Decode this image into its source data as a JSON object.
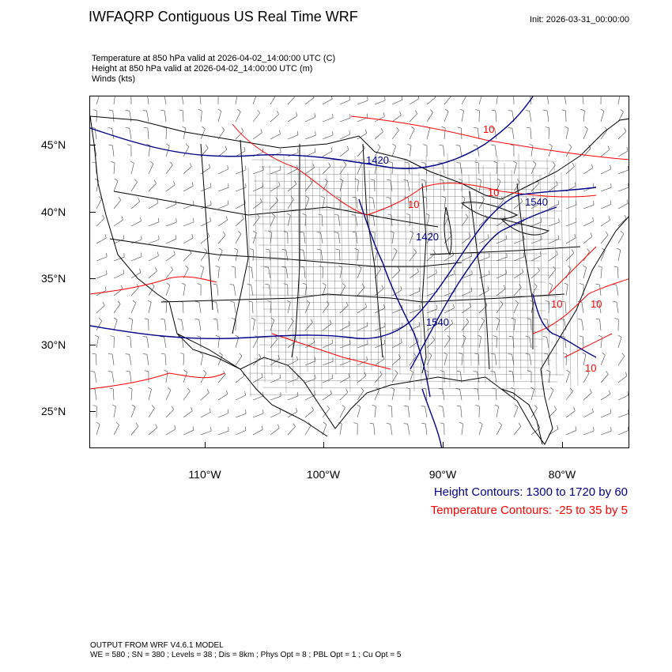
{
  "header": {
    "title": "IWFAQRP Contiguous US Real Time WRF",
    "init": "Init: 2026-03-31_00:00:00"
  },
  "subtitles": [
    "Temperature at 850 hPa valid at 2026-04-02_14:00:00 UTC   (C)",
    "Height at 850 hPa valid at 2026-04-02_14:00:00 UTC   (m)",
    "Winds   (kts)"
  ],
  "map": {
    "lat_labels": [
      "45°N",
      "40°N",
      "35°N",
      "30°N",
      "25°N"
    ],
    "lon_labels": [
      "110°W",
      "100°W",
      "90°W",
      "80°W"
    ],
    "height_contour_labels": [
      "1420",
      "1540",
      "1420",
      "1540"
    ],
    "temp_contour_labels": [
      "10",
      "10",
      "10",
      "10",
      "10",
      "10"
    ],
    "colors": {
      "height": "#00008b",
      "temperature": "#ff0000",
      "borders": "#000000",
      "barbs": "#333333"
    }
  },
  "legend": {
    "height": "Height Contours: 1300 to 1720 by 60",
    "temperature": "Temperature Contours: -25 to 35 by 5"
  },
  "footer": {
    "line1": "OUTPUT FROM WRF V4.6.1 MODEL",
    "line2": "WE = 580 ; SN = 380 ; Levels = 38 ; Dis = 8km ; Phys Opt = 8 ; PBL Opt = 1 ; Cu Opt = 5"
  }
}
